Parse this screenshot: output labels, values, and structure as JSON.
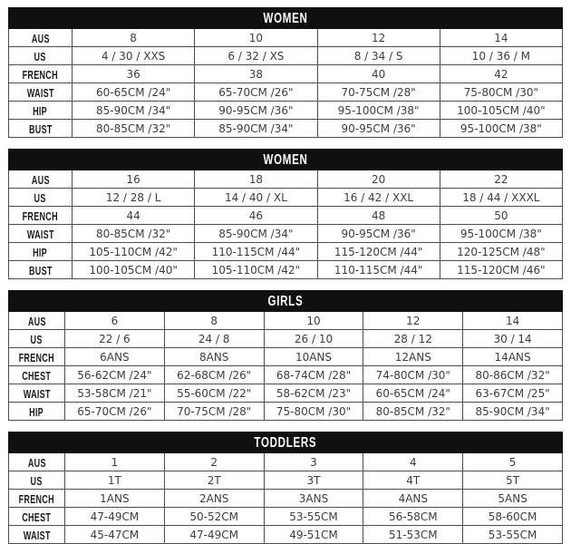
{
  "colors": {
    "header_bg": "#101010",
    "header_text": "#ffffff",
    "border": "#4d4d4d",
    "label_text": "#1b1b1b",
    "cell_text": "#3d3d3d"
  },
  "tables": [
    {
      "title": "WOMEN",
      "rows": [
        {
          "label": "AUS",
          "cells": [
            "8",
            "10",
            "12",
            "14"
          ]
        },
        {
          "label": "US",
          "cells": [
            "4 / 30 / XXS",
            "6 / 32 / XS",
            "8 / 34 / S",
            "10 / 36 / M"
          ]
        },
        {
          "label": "FRENCH",
          "cells": [
            "36",
            "38",
            "40",
            "42"
          ]
        },
        {
          "label": "WAIST",
          "cells": [
            "60-65CM /24\"",
            "65-70CM /26\"",
            "70-75CM /28\"",
            "75-80CM /30\""
          ]
        },
        {
          "label": "HIP",
          "cells": [
            "85-90CM /34\"",
            "90-95CM /36\"",
            "95-100CM /38\"",
            "100-105CM /40\""
          ]
        },
        {
          "label": "BUST",
          "cells": [
            "80-85CM /32\"",
            "85-90CM /34\"",
            "90-95CM /36\"",
            "95-100CM /38\""
          ]
        }
      ]
    },
    {
      "title": "WOMEN",
      "rows": [
        {
          "label": "AUS",
          "cells": [
            "16",
            "18",
            "20",
            "22"
          ]
        },
        {
          "label": "US",
          "cells": [
            "12 / 28 / L",
            "14 / 40 / XL",
            "16 / 42 / XXL",
            "18 / 44 / XXXL"
          ]
        },
        {
          "label": "FRENCH",
          "cells": [
            "44",
            "46",
            "48",
            "50"
          ]
        },
        {
          "label": "WAIST",
          "cells": [
            "80-85CM /32\"",
            "85-90CM /34\"",
            "90-95CM /36\"",
            "95-100CM /38\""
          ]
        },
        {
          "label": "HIP",
          "cells": [
            "105-110CM /42\"",
            "110-115CM /44\"",
            "115-120CM /44\"",
            "120-125CM /48\""
          ]
        },
        {
          "label": "BUST",
          "cells": [
            "100-105CM /40\"",
            "105-110CM /42\"",
            "110-115CM /44\"",
            "115-120CM /46\""
          ]
        }
      ]
    },
    {
      "title": "GIRLS",
      "rows": [
        {
          "label": "AUS",
          "cells": [
            "6",
            "8",
            "10",
            "12",
            "14"
          ]
        },
        {
          "label": "US",
          "cells": [
            "22 / 6",
            "24 / 8",
            "26 / 10",
            "28 / 12",
            "30 / 14"
          ]
        },
        {
          "label": "FRENCH",
          "cells": [
            "6ANS",
            "8ANS",
            "10ANS",
            "12ANS",
            "14ANS"
          ]
        },
        {
          "label": "CHEST",
          "cells": [
            "56-62CM /24\"",
            "62-68CM /26\"",
            "68-74CM /28\"",
            "74-80CM /30\"",
            "80-86CM /32\""
          ]
        },
        {
          "label": "WAIST",
          "cells": [
            "53-58CM /21\"",
            "55-60CM /22\"",
            "58-62CM /23\"",
            "60-65CM /24\"",
            "63-67CM /25\""
          ]
        },
        {
          "label": "HIP",
          "cells": [
            "65-70CM /26\"",
            "70-75CM /28\"",
            "75-80CM /30\"",
            "80-85CM /32\"",
            "85-90CM /34\""
          ]
        }
      ]
    },
    {
      "title": "TODDLERS",
      "rows": [
        {
          "label": "AUS",
          "cells": [
            "1",
            "2",
            "3",
            "4",
            "5"
          ]
        },
        {
          "label": "US",
          "cells": [
            "1T",
            "2T",
            "3T",
            "4T",
            "5T"
          ]
        },
        {
          "label": "FRENCH",
          "cells": [
            "1ANS",
            "2ANS",
            "3ANS",
            "4ANS",
            "5ANS"
          ]
        },
        {
          "label": "CHEST",
          "cells": [
            "47-49CM",
            "50-52CM",
            "53-55CM",
            "56-58CM",
            "58-60CM"
          ]
        },
        {
          "label": "WAIST",
          "cells": [
            "45-47CM",
            "47-49CM",
            "49-51CM",
            "51-53CM",
            "53-55CM"
          ]
        }
      ]
    }
  ]
}
